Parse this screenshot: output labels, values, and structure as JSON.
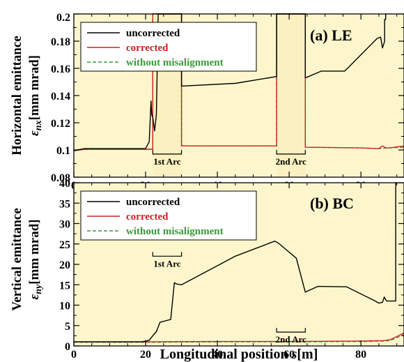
{
  "xlabel_main": "Longitudinal position ",
  "xlabel_var": "s",
  "xlabel_unit": "[m]",
  "chart_data": [
    {
      "type": "line",
      "id": "top",
      "panel_label": "(a) LE",
      "ylabel_line1": "Horizontal emittance",
      "ylabel_sym": "ε",
      "ylabel_sub": "nx",
      "ylabel_unit": "[mm mrad]",
      "xlim": [
        0,
        92
      ],
      "ylim": [
        0.08,
        0.2
      ],
      "xticks": [
        0,
        20,
        40,
        60,
        80
      ],
      "xtick_labels": [
        "0",
        "20",
        "40",
        "60",
        "80"
      ],
      "yticks": [
        0.08,
        0.1,
        0.12,
        0.14,
        0.16,
        0.18,
        0.2
      ],
      "ytick_labels": [
        "0.08",
        "0.1",
        "0.12",
        "0.14",
        "0.16",
        "0.18",
        "0.2"
      ],
      "legend_position": "top-left",
      "arcs": [
        {
          "label": "1st Arc",
          "x0": 22,
          "x1": 30,
          "y": 0.097
        },
        {
          "label": "2nd Arc",
          "x0": 56.5,
          "x1": 64.5,
          "y": 0.097
        }
      ],
      "shaded_regions": [
        [
          22,
          30
        ],
        [
          56.5,
          64.5
        ]
      ],
      "series": [
        {
          "name": "uncorrected",
          "color": "#000000",
          "dash": "solid",
          "x": [
            0,
            3,
            10,
            20,
            21,
            21.5,
            21.7,
            22,
            22.5,
            23,
            23.5,
            30,
            30,
            45,
            56.5,
            56.5,
            64.5,
            64.5,
            69,
            75.5,
            84.5,
            85.5,
            86,
            86.6,
            86.6,
            86.9,
            86.9,
            87
          ],
          "y": [
            0.0995,
            0.101,
            0.101,
            0.101,
            0.106,
            0.136,
            0.126,
            0.124,
            0.114,
            0.126,
            0.2,
            0.2,
            0.147,
            0.149,
            0.154,
            0.2,
            0.2,
            0.153,
            0.158,
            0.158,
            0.182,
            0.183,
            0.175,
            0.18,
            0.196,
            0.196,
            0.2,
            0.2
          ]
        },
        {
          "name": "corrected",
          "color": "#cc2222",
          "dash": "solid",
          "x": [
            0,
            3,
            10,
            20,
            21.5,
            22,
            22,
            30,
            30,
            56.5,
            56.5,
            64.5,
            64.5,
            80,
            85,
            86,
            87,
            88,
            92
          ],
          "y": [
            0.0995,
            0.1005,
            0.1005,
            0.1005,
            0.1005,
            0.1005,
            0.2,
            0.2,
            0.103,
            0.103,
            0.2,
            0.2,
            0.102,
            0.1015,
            0.101,
            0.103,
            0.1015,
            0.1015,
            0.103
          ]
        },
        {
          "name": "without misalignment",
          "color": "#3a9a3a",
          "dash": "dashed",
          "x": [
            0,
            3,
            10,
            20,
            21.5,
            22,
            22,
            30,
            30,
            56.5,
            56.5,
            64.5,
            64.5,
            80,
            85,
            88,
            92
          ],
          "y": [
            0.0995,
            0.1005,
            0.1005,
            0.1005,
            0.1005,
            0.1005,
            0.2,
            0.2,
            0.103,
            0.103,
            0.2,
            0.2,
            0.102,
            0.1015,
            0.101,
            0.1015,
            0.102
          ]
        }
      ]
    },
    {
      "type": "line",
      "id": "bottom",
      "panel_label": "(b) BC",
      "ylabel_line1": "Vertical emittance",
      "ylabel_sym": "ε",
      "ylabel_sub": "ny",
      "ylabel_unit": "[mm mrad]",
      "xlim": [
        0,
        92
      ],
      "ylim": [
        0,
        40
      ],
      "xticks": [
        0,
        20,
        40,
        60,
        80
      ],
      "xtick_labels": [
        "0",
        "20",
        "40",
        "60",
        "80"
      ],
      "yticks": [
        0,
        5,
        10,
        15,
        20,
        25,
        30,
        35,
        40
      ],
      "ytick_labels": [
        "0",
        "5",
        "10",
        "15",
        "20",
        "25",
        "30",
        "35",
        "40"
      ],
      "legend_position": "top-left",
      "arcs": [
        {
          "label": "1st Arc",
          "x0": 22,
          "x1": 30,
          "y": 22
        },
        {
          "label": "2nd Arc",
          "x0": 56.5,
          "x1": 64.5,
          "y": 3.4
        }
      ],
      "shaded_regions": [],
      "series": [
        {
          "name": "uncorrected",
          "color": "#000000",
          "dash": "solid",
          "x": [
            0,
            10,
            19,
            21,
            22,
            23,
            24,
            27,
            28,
            28.6,
            30,
            45,
            56,
            57,
            62,
            64.5,
            68,
            76,
            84,
            85,
            86,
            86.5,
            87,
            87.2,
            87.2,
            89.7,
            89.7,
            90
          ],
          "y": [
            1,
            1,
            1,
            1.4,
            2.5,
            3.5,
            5.8,
            6.5,
            15.5,
            15.2,
            15,
            22,
            25.7,
            25.2,
            21.5,
            13.2,
            14.6,
            14.5,
            11,
            10.5,
            10.7,
            12,
            11.2,
            11,
            11,
            11,
            40,
            40
          ]
        },
        {
          "name": "corrected",
          "color": "#cc2222",
          "dash": "solid",
          "x": [
            0,
            20,
            40,
            60,
            80,
            86,
            88,
            90,
            92
          ],
          "y": [
            1,
            1,
            1.1,
            1.1,
            1.2,
            1.3,
            1.5,
            2.3,
            3.2
          ]
        },
        {
          "name": "without misalignment",
          "color": "#3a9a3a",
          "dash": "dashed",
          "x": [
            0,
            20,
            40,
            60,
            80,
            86,
            88,
            90,
            92
          ],
          "y": [
            0.9,
            0.9,
            1,
            1,
            1.1,
            1.2,
            1.3,
            2,
            2.8
          ]
        }
      ]
    }
  ]
}
